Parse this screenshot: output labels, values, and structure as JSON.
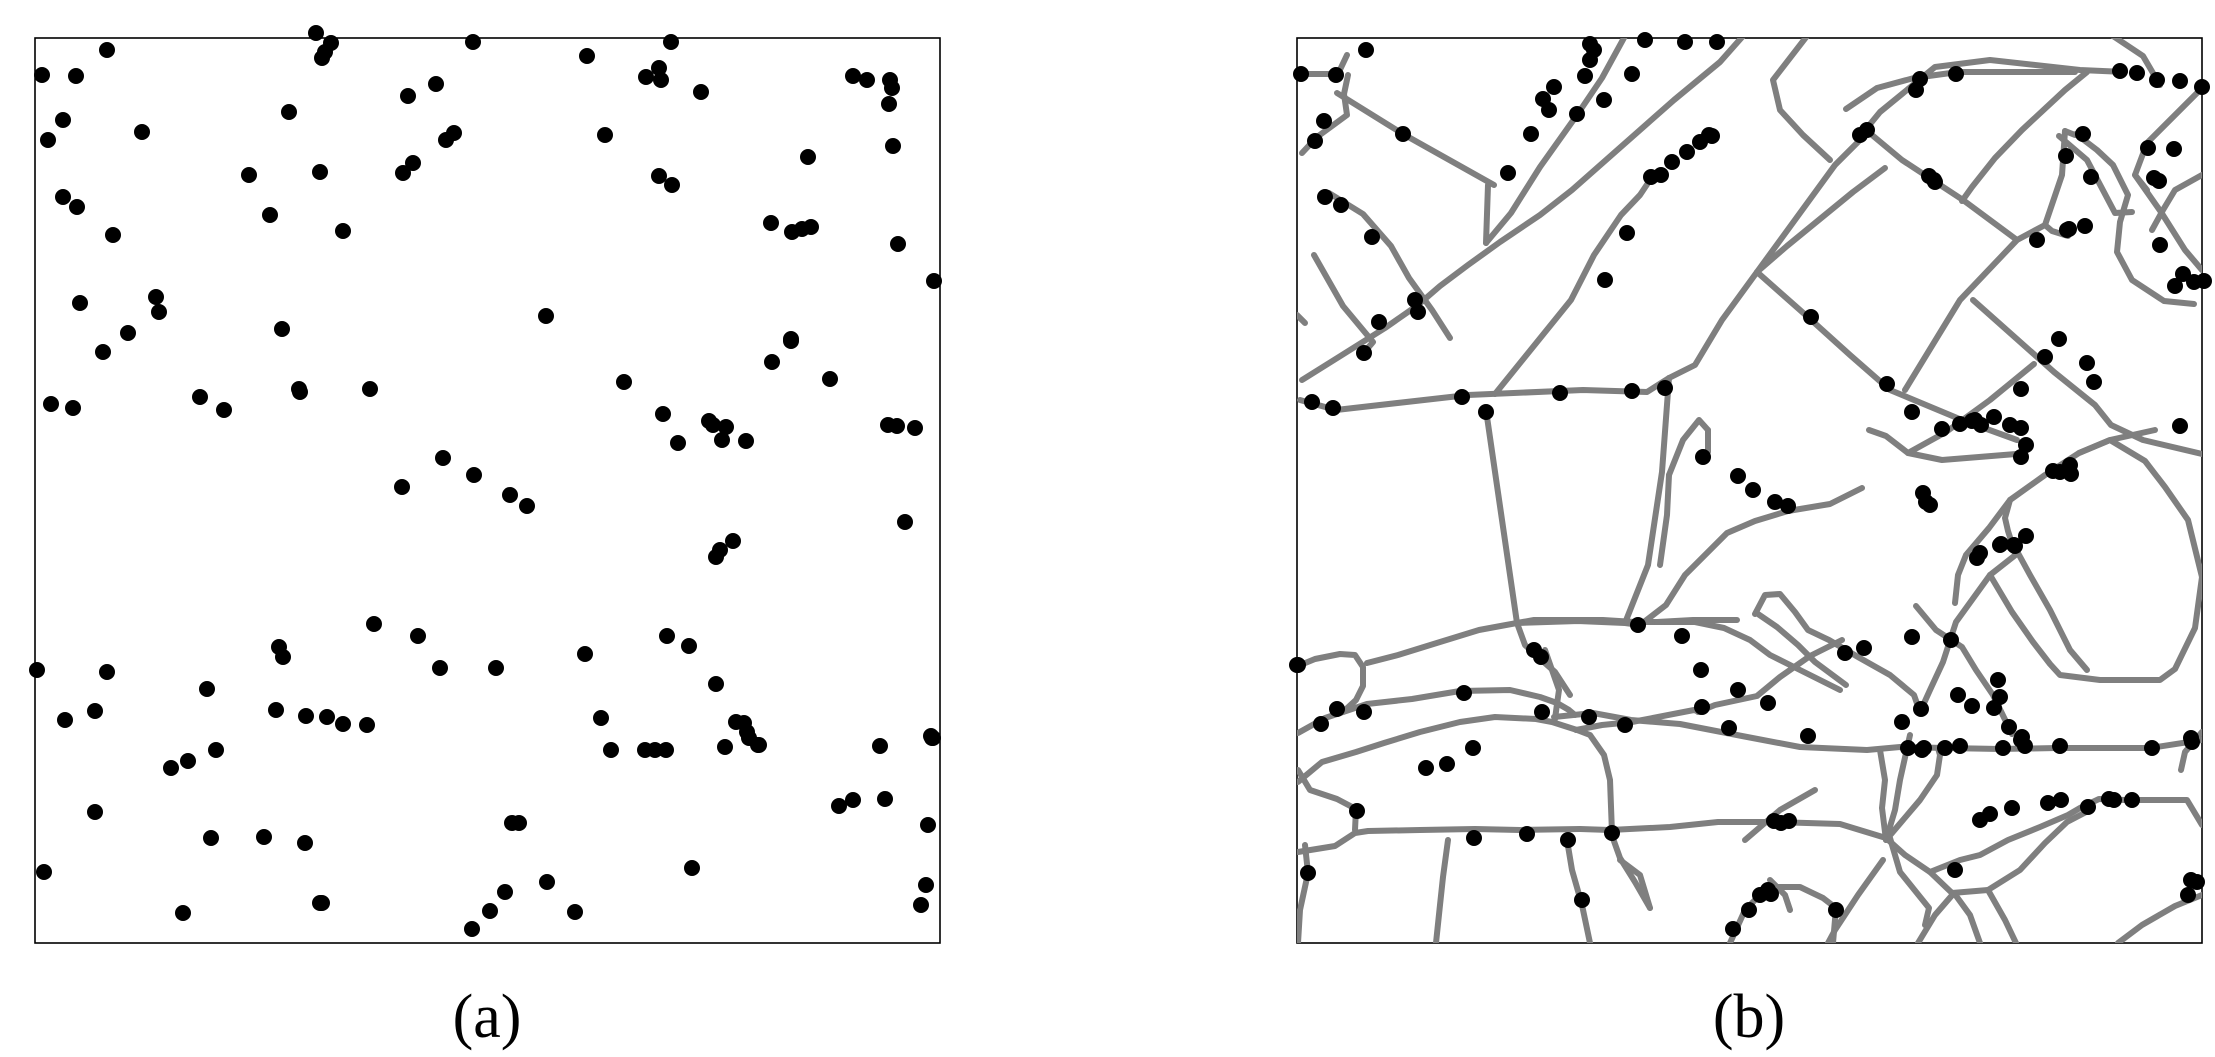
{
  "panels": [
    {
      "id": "a",
      "caption": "(a)"
    },
    {
      "id": "b",
      "caption": "(b)"
    }
  ],
  "style": {
    "point_color": "#000000",
    "road_color": "#7f7f7f",
    "frame_color": "#000000"
  }
}
